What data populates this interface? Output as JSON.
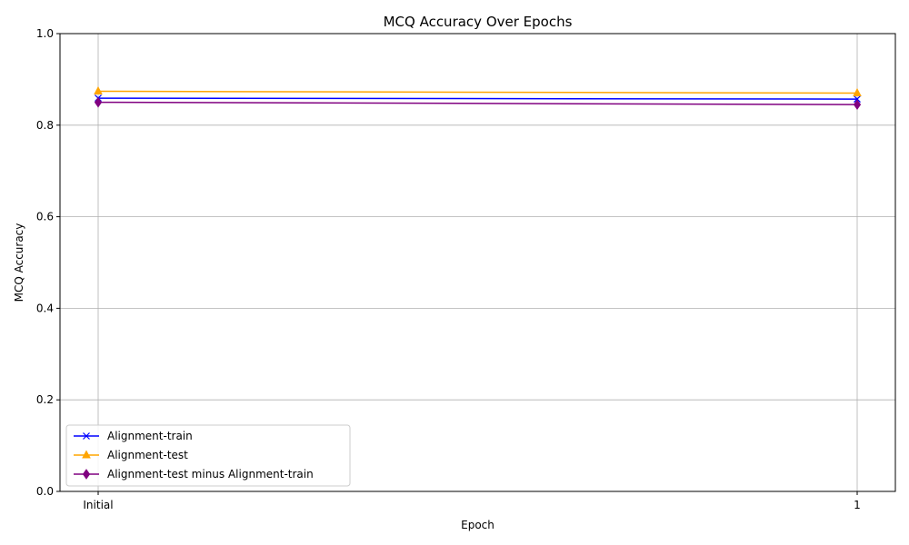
{
  "chart_data": {
    "type": "line",
    "title": "MCQ Accuracy Over Epochs",
    "xlabel": "Epoch",
    "ylabel": "MCQ Accuracy",
    "categories": [
      "Initial",
      "1"
    ],
    "ylim": [
      0,
      1
    ],
    "yticks": [
      "0.0",
      "0.2",
      "0.4",
      "0.6",
      "0.8",
      "1.0"
    ],
    "ytick_values": [
      0,
      0.2,
      0.4,
      0.6,
      0.8,
      1.0
    ],
    "grid": true,
    "legend_position": "lower-left",
    "series": [
      {
        "name": "Alignment-train",
        "values": [
          0.859,
          0.857
        ],
        "color": "#0000ff",
        "marker": "x"
      },
      {
        "name": "Alignment-test",
        "values": [
          0.874,
          0.87
        ],
        "color": "#ffa500",
        "marker": "triangle"
      },
      {
        "name": "Alignment-test minus Alignment-train",
        "values": [
          0.85,
          0.845
        ],
        "color": "#800080",
        "marker": "diamond"
      }
    ]
  }
}
